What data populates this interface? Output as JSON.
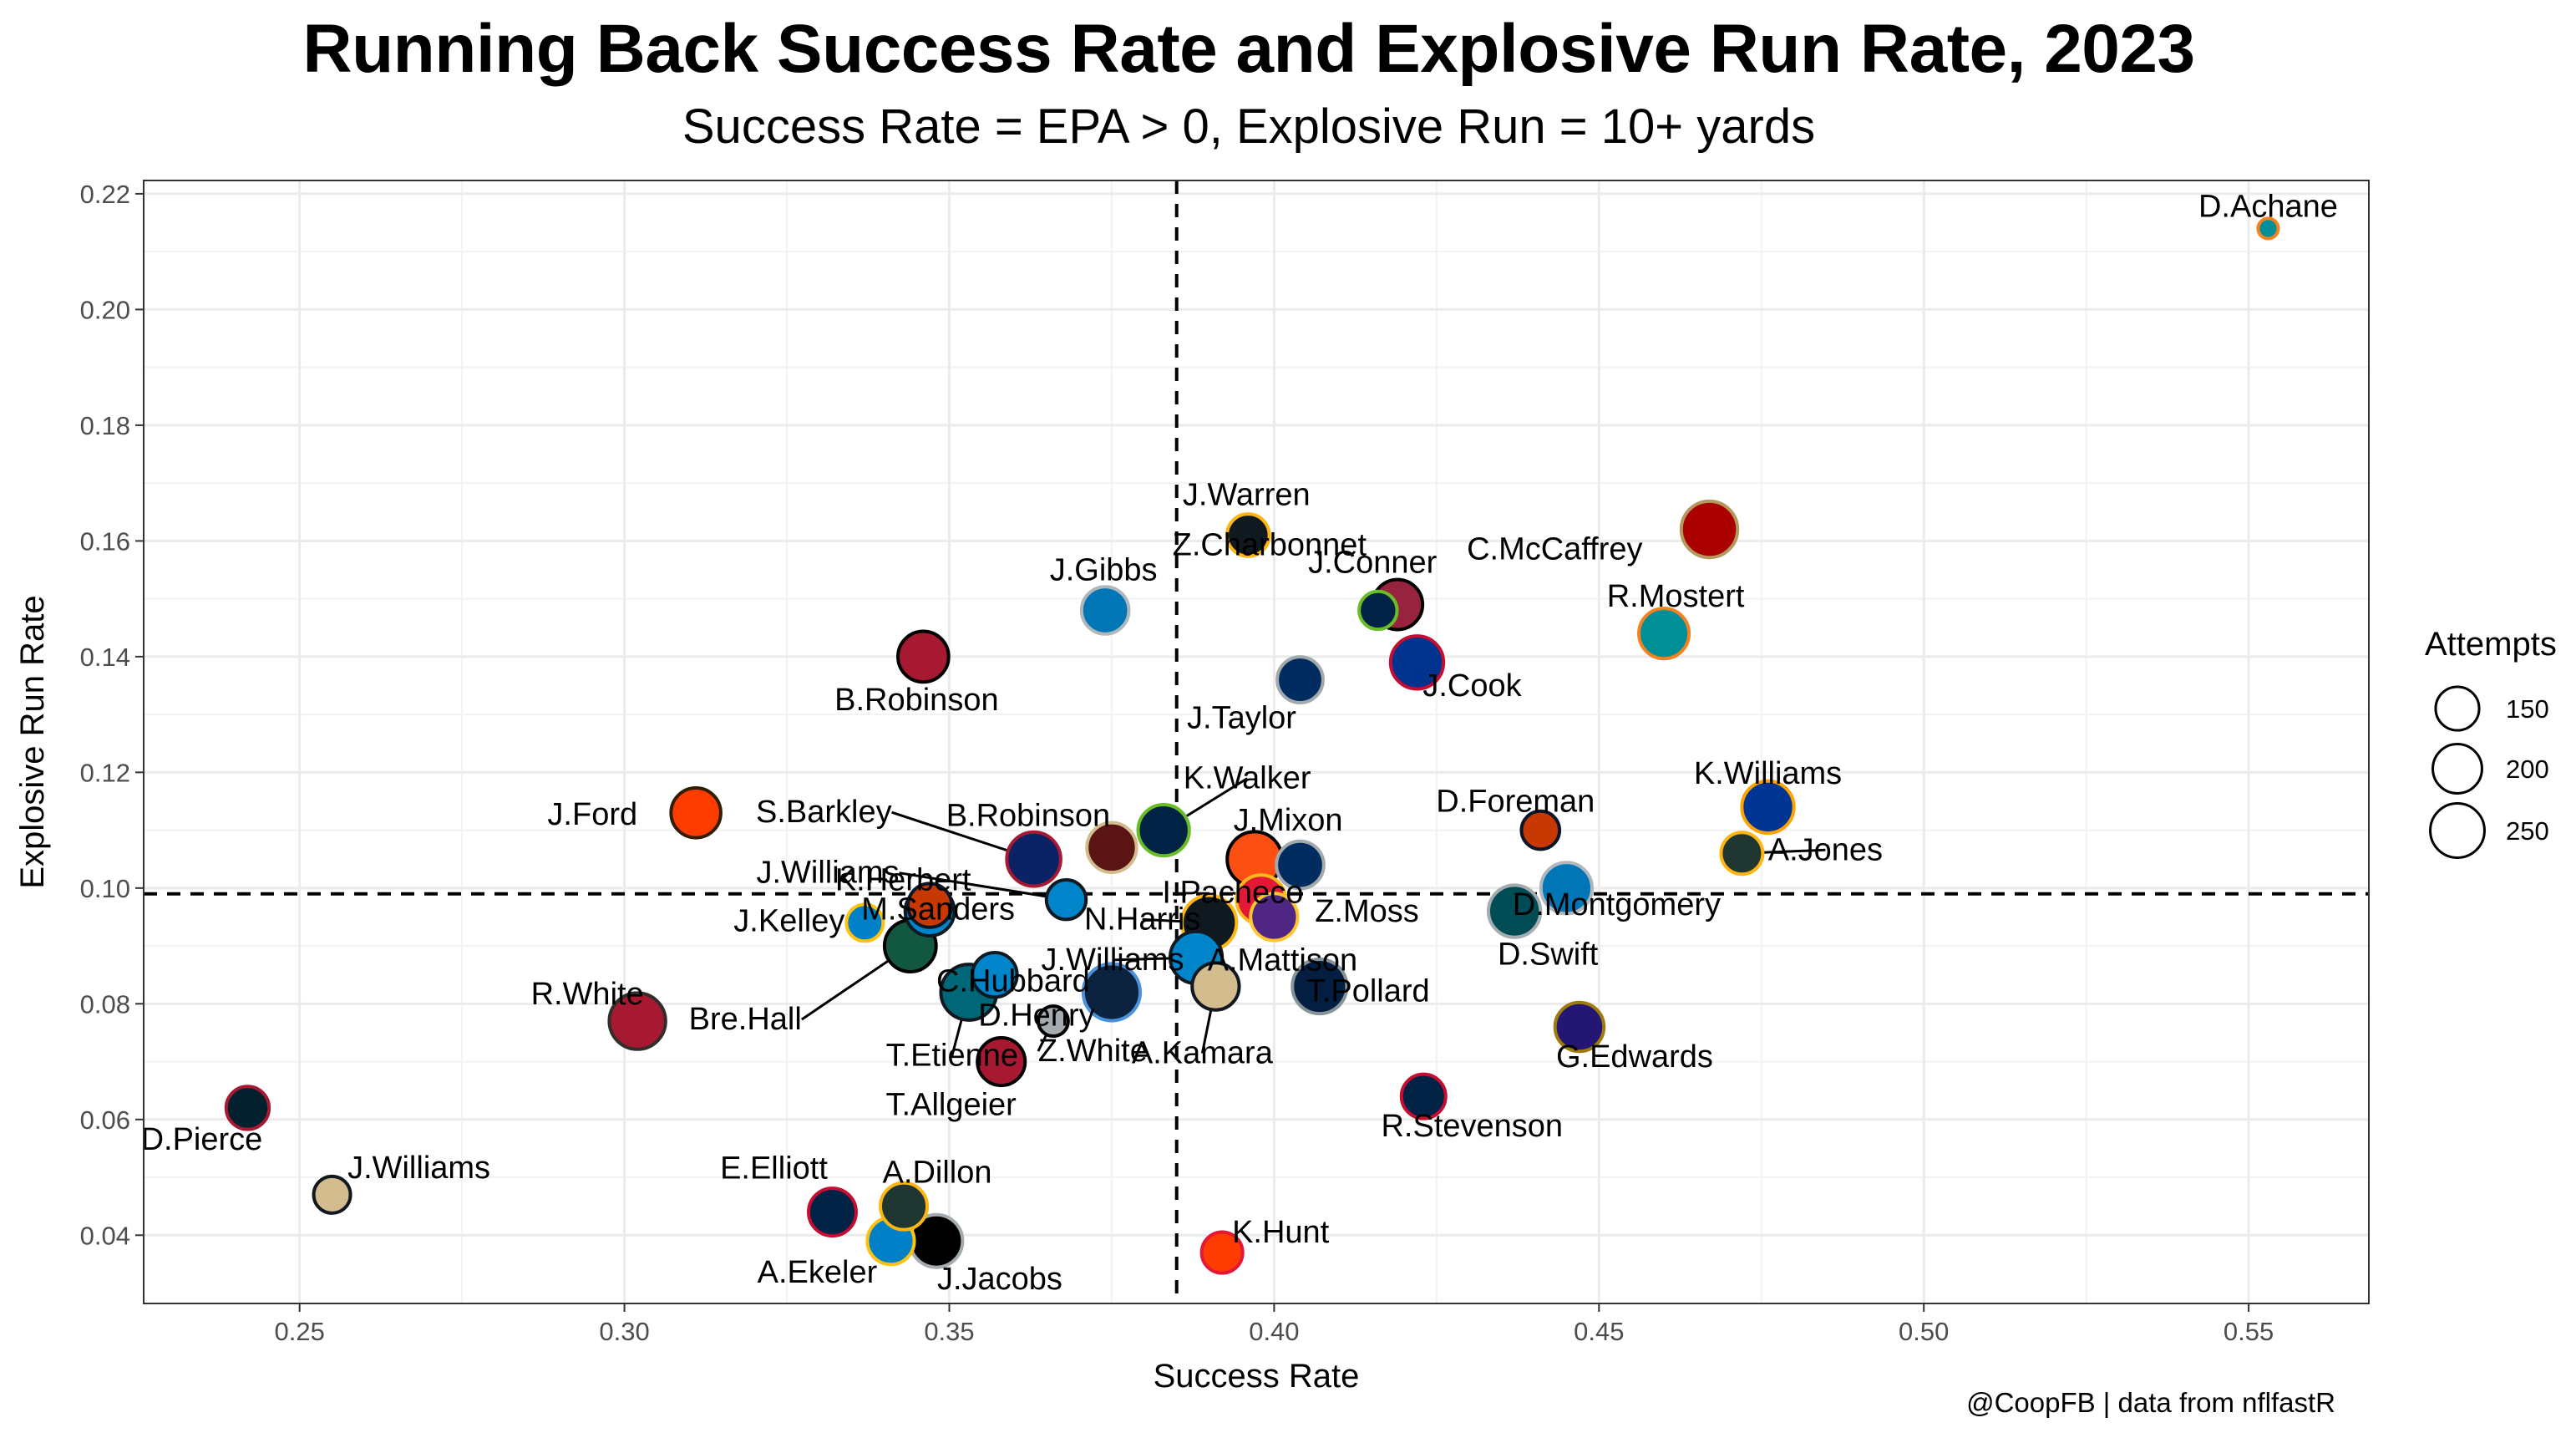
{
  "chart_data": {
    "type": "scatter",
    "title": "Running Back Success Rate and Explosive Run Rate, 2023",
    "subtitle": "Success Rate = EPA > 0, Explosive Run = 10+ yards",
    "xlabel": "Success Rate",
    "ylabel": "Explosive Run Rate",
    "caption": "@CoopFB | data from nflfastR",
    "xlim": [
      0.226,
      0.5685
    ],
    "ylim": [
      0.0282,
      0.2223
    ],
    "x_ticks": [
      0.25,
      0.3,
      0.35,
      0.4,
      0.45,
      0.5,
      0.55
    ],
    "x_tick_labels": [
      "0.25",
      "0.30",
      "0.35",
      "0.40",
      "0.45",
      "0.50",
      "0.55"
    ],
    "y_ticks": [
      0.04,
      0.06,
      0.08,
      0.1,
      0.12,
      0.14,
      0.16,
      0.18,
      0.2,
      0.22
    ],
    "y_tick_labels": [
      "0.04",
      "0.06",
      "0.08",
      "0.10",
      "0.12",
      "0.14",
      "0.16",
      "0.18",
      "0.20",
      "0.22"
    ],
    "reference_lines": {
      "x": 0.385,
      "y": 0.099,
      "style": "dashed"
    },
    "grid": true,
    "legend": {
      "title": "Attempts",
      "placement": "right",
      "entries": [
        {
          "label": "150",
          "value": 150
        },
        {
          "label": "200",
          "value": 200
        },
        {
          "label": "250",
          "value": 250
        }
      ]
    },
    "points": [
      {
        "name": "D.Achane",
        "x": 0.553,
        "y": 0.214,
        "attempts": 20,
        "fill": "#008E97",
        "stroke": "#F58220"
      },
      {
        "name": "C.McCaffrey",
        "x": 0.467,
        "y": 0.162,
        "attempts": 272,
        "fill": "#AA0000",
        "stroke": "#B3995D"
      },
      {
        "name": "R.Mostert",
        "x": 0.46,
        "y": 0.144,
        "attempts": 209,
        "fill": "#008E97",
        "stroke": "#F58220"
      },
      {
        "name": "J.Warren",
        "x": 0.396,
        "y": 0.161,
        "attempts": 140,
        "fill": "#101820",
        "stroke": "#FFB612"
      },
      {
        "name": "J.Conner",
        "x": 0.419,
        "y": 0.149,
        "attempts": 208,
        "fill": "#97233F",
        "stroke": "#000000"
      },
      {
        "name": "J.Gibbs",
        "x": 0.374,
        "y": 0.148,
        "attempts": 182,
        "fill": "#0076B6",
        "stroke": "#B0B7BC"
      },
      {
        "name": "Z.Charbonnet",
        "x": 0.416,
        "y": 0.148,
        "attempts": 108,
        "fill": "#002244",
        "stroke": "#69BE28"
      },
      {
        "name": "B.Robinson",
        "x": 0.346,
        "y": 0.14,
        "attempts": 214,
        "fill": "#A71930",
        "stroke": "#000000"
      },
      {
        "name": "J.Cook",
        "x": 0.422,
        "y": 0.139,
        "attempts": 237,
        "fill": "#00338D",
        "stroke": "#C60C30"
      },
      {
        "name": "J.Taylor",
        "x": 0.404,
        "y": 0.136,
        "attempts": 169,
        "fill": "#002C5F",
        "stroke": "#A2AAAD"
      },
      {
        "name": "J.Ford",
        "x": 0.311,
        "y": 0.113,
        "attempts": 205,
        "fill": "#FF3C00",
        "stroke": "#311D00"
      },
      {
        "name": "K.Walker",
        "x": 0.383,
        "y": 0.11,
        "attempts": 219,
        "fill": "#002244",
        "stroke": "#69BE28"
      },
      {
        "name": "D.Foreman",
        "x": 0.441,
        "y": 0.11,
        "attempts": 109,
        "fill": "#C83803",
        "stroke": "#0B162A"
      },
      {
        "name": "K.Williams",
        "x": 0.476,
        "y": 0.114,
        "attempts": 228,
        "fill": "#003594",
        "stroke": "#FFA300"
      },
      {
        "name": "A.Jones",
        "x": 0.472,
        "y": 0.106,
        "attempts": 136,
        "fill": "#203731",
        "stroke": "#FFB612"
      },
      {
        "name": "B.Robinson",
        "x": 0.375,
        "y": 0.107,
        "attempts": 204,
        "fill": "#5A1414",
        "stroke": "#D3BC8D"
      },
      {
        "name": "S.Barkley",
        "x": 0.363,
        "y": 0.105,
        "attempts": 247,
        "fill": "#0B2265",
        "stroke": "#A71930"
      },
      {
        "name": "J.Mixon",
        "x": 0.397,
        "y": 0.105,
        "attempts": 257,
        "fill": "#FB4F14",
        "stroke": "#000000"
      },
      {
        "name": "Z.Moss",
        "x": 0.404,
        "y": 0.104,
        "attempts": 183,
        "fill": "#002C5F",
        "stroke": "#A2AAAD"
      },
      {
        "name": "D.Montgomery",
        "x": 0.445,
        "y": 0.1,
        "attempts": 219,
        "fill": "#0076B6",
        "stroke": "#B0B7BC"
      },
      {
        "name": "J.Williams",
        "x": 0.368,
        "y": 0.098,
        "attempts": 120,
        "fill": "#0085CA",
        "stroke": "#101820"
      },
      {
        "name": "K.Herbert",
        "x": 0.347,
        "y": 0.097,
        "attempts": 152,
        "fill": "#C83803",
        "stroke": "#0B162A"
      },
      {
        "name": "I.Pacheco",
        "x": 0.398,
        "y": 0.098,
        "attempts": 200,
        "fill": "#E31837",
        "stroke": "#FFB81C"
      },
      {
        "name": "D.Swift",
        "x": 0.437,
        "y": 0.096,
        "attempts": 228,
        "fill": "#004C54",
        "stroke": "#A5ACAF"
      },
      {
        "name": "N.Harris",
        "x": 0.39,
        "y": 0.094,
        "attempts": 255,
        "fill": "#101820",
        "stroke": "#FFB612"
      },
      {
        "name": "A.Mattison",
        "x": 0.4,
        "y": 0.095,
        "attempts": 180,
        "fill": "#4F2683",
        "stroke": "#FFC62F"
      },
      {
        "name": "J.Kelley",
        "x": 0.337,
        "y": 0.094,
        "attempts": 100,
        "fill": "#0080C6",
        "stroke": "#FFC20E"
      },
      {
        "name": "M.Sanders",
        "x": 0.347,
        "y": 0.096,
        "attempts": 200,
        "fill": "#0085CA",
        "stroke": "#101820"
      },
      {
        "name": "Bre.Hall",
        "x": 0.344,
        "y": 0.09,
        "attempts": 223,
        "fill": "#125740",
        "stroke": "#000000"
      },
      {
        "name": "C.Hubbard",
        "x": 0.357,
        "y": 0.085,
        "attempts": 159,
        "fill": "#0085CA",
        "stroke": "#101820"
      },
      {
        "name": "J.Williams",
        "x": 0.388,
        "y": 0.088,
        "attempts": 227,
        "fill": "#0085CA",
        "stroke": "#101820"
      },
      {
        "name": "T.Etienne",
        "x": 0.353,
        "y": 0.082,
        "attempts": 266,
        "fill": "#006778",
        "stroke": "#101820"
      },
      {
        "name": "D.Henry",
        "x": 0.375,
        "y": 0.082,
        "attempts": 280,
        "fill": "#0C2340",
        "stroke": "#4B92DB"
      },
      {
        "name": "A.Kamara",
        "x": 0.391,
        "y": 0.083,
        "attempts": 180,
        "fill": "#D3BC8D",
        "stroke": "#101820"
      },
      {
        "name": "T.Pollard",
        "x": 0.407,
        "y": 0.083,
        "attempts": 252,
        "fill": "#041E42",
        "stroke": "#869397"
      },
      {
        "name": "R.White",
        "x": 0.302,
        "y": 0.077,
        "attempts": 272,
        "fill": "#A71930",
        "stroke": "#322F2B"
      },
      {
        "name": "Z.White",
        "x": 0.366,
        "y": 0.077,
        "attempts": 60,
        "fill": "#A5ACAF",
        "stroke": "#000000"
      },
      {
        "name": "G.Edwards",
        "x": 0.447,
        "y": 0.076,
        "attempts": 197,
        "fill": "#241773",
        "stroke": "#9E7C0C"
      },
      {
        "name": "T.Allgeier",
        "x": 0.358,
        "y": 0.07,
        "attempts": 186,
        "fill": "#A71930",
        "stroke": "#000000"
      },
      {
        "name": "R.Stevenson",
        "x": 0.423,
        "y": 0.064,
        "attempts": 156,
        "fill": "#002244",
        "stroke": "#C60C30"
      },
      {
        "name": "D.Pierce",
        "x": 0.242,
        "y": 0.062,
        "attempts": 145,
        "fill": "#03202F",
        "stroke": "#A71930"
      },
      {
        "name": "J.Williams",
        "x": 0.255,
        "y": 0.047,
        "attempts": 100,
        "fill": "#D3BC8D",
        "stroke": "#101820"
      },
      {
        "name": "E.Elliott",
        "x": 0.332,
        "y": 0.044,
        "attempts": 185,
        "fill": "#002244",
        "stroke": "#C60C30"
      },
      {
        "name": "A.Dillon",
        "x": 0.343,
        "y": 0.045,
        "attempts": 178,
        "fill": "#203731",
        "stroke": "#FFB612"
      },
      {
        "name": "A.Ekeler",
        "x": 0.341,
        "y": 0.039,
        "attempts": 179,
        "fill": "#0080C6",
        "stroke": "#FFC20E"
      },
      {
        "name": "J.Jacobs",
        "x": 0.348,
        "y": 0.039,
        "attempts": 233,
        "fill": "#000000",
        "stroke": "#A5ACAF"
      },
      {
        "name": "K.Hunt",
        "x": 0.392,
        "y": 0.037,
        "attempts": 130,
        "fill": "#FF3C00",
        "stroke": "#E31837"
      }
    ]
  }
}
